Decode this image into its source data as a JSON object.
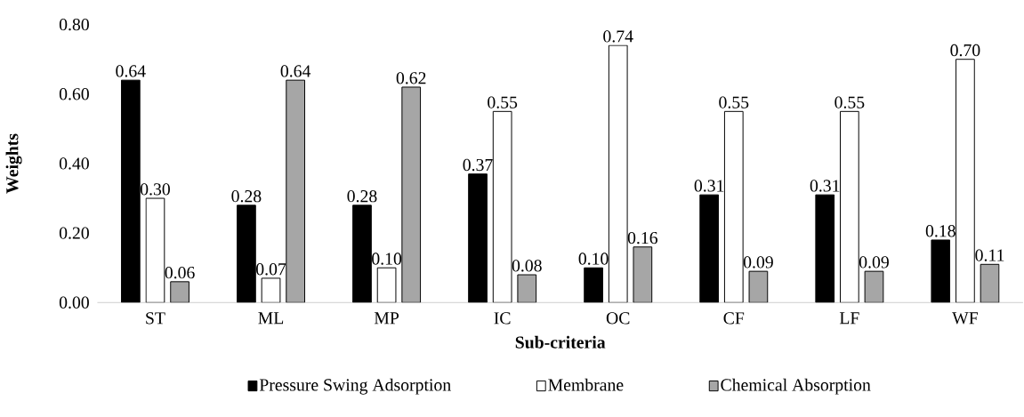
{
  "chart_data": {
    "type": "bar",
    "xlabel": "Sub-criteria",
    "ylabel": "Weights",
    "categories": [
      "ST",
      "ML",
      "MP",
      "IC",
      "OC",
      "CF",
      "LF",
      "WF"
    ],
    "series": [
      {
        "name": "Pressure Swing Adsorption",
        "color": "#000000",
        "values": [
          0.64,
          0.28,
          0.28,
          0.37,
          0.1,
          0.31,
          0.31,
          0.18
        ],
        "value_labels": [
          "0.64",
          "0.28",
          "0.28",
          "0.37",
          "0.10",
          "0.31",
          "0.31",
          "0.18"
        ]
      },
      {
        "name": "Membrane",
        "color": "#ffffff",
        "values": [
          0.3,
          0.07,
          0.1,
          0.55,
          0.74,
          0.55,
          0.55,
          0.7
        ],
        "value_labels": [
          "0.30",
          "0.07",
          "0.10",
          "0.55",
          "0.74",
          "0.55",
          "0.55",
          "0.70"
        ]
      },
      {
        "name": "Chemical Absorption",
        "color": "#a6a6a6",
        "values": [
          0.06,
          0.64,
          0.62,
          0.08,
          0.16,
          0.09,
          0.09,
          0.11
        ],
        "value_labels": [
          "0.06",
          "0.64",
          "0.62",
          "0.08",
          "0.16",
          "0.09",
          "0.09",
          "0.11"
        ]
      }
    ],
    "ylim": [
      0,
      0.8
    ],
    "yticks": [
      {
        "value": 0,
        "label": "0.00"
      },
      {
        "value": 0.2,
        "label": "0.20"
      },
      {
        "value": 0.4,
        "label": "0.40"
      },
      {
        "value": 0.6,
        "label": "0.60"
      },
      {
        "value": 0.8,
        "label": "0.80"
      }
    ],
    "grid": false,
    "legend": "bottom"
  }
}
